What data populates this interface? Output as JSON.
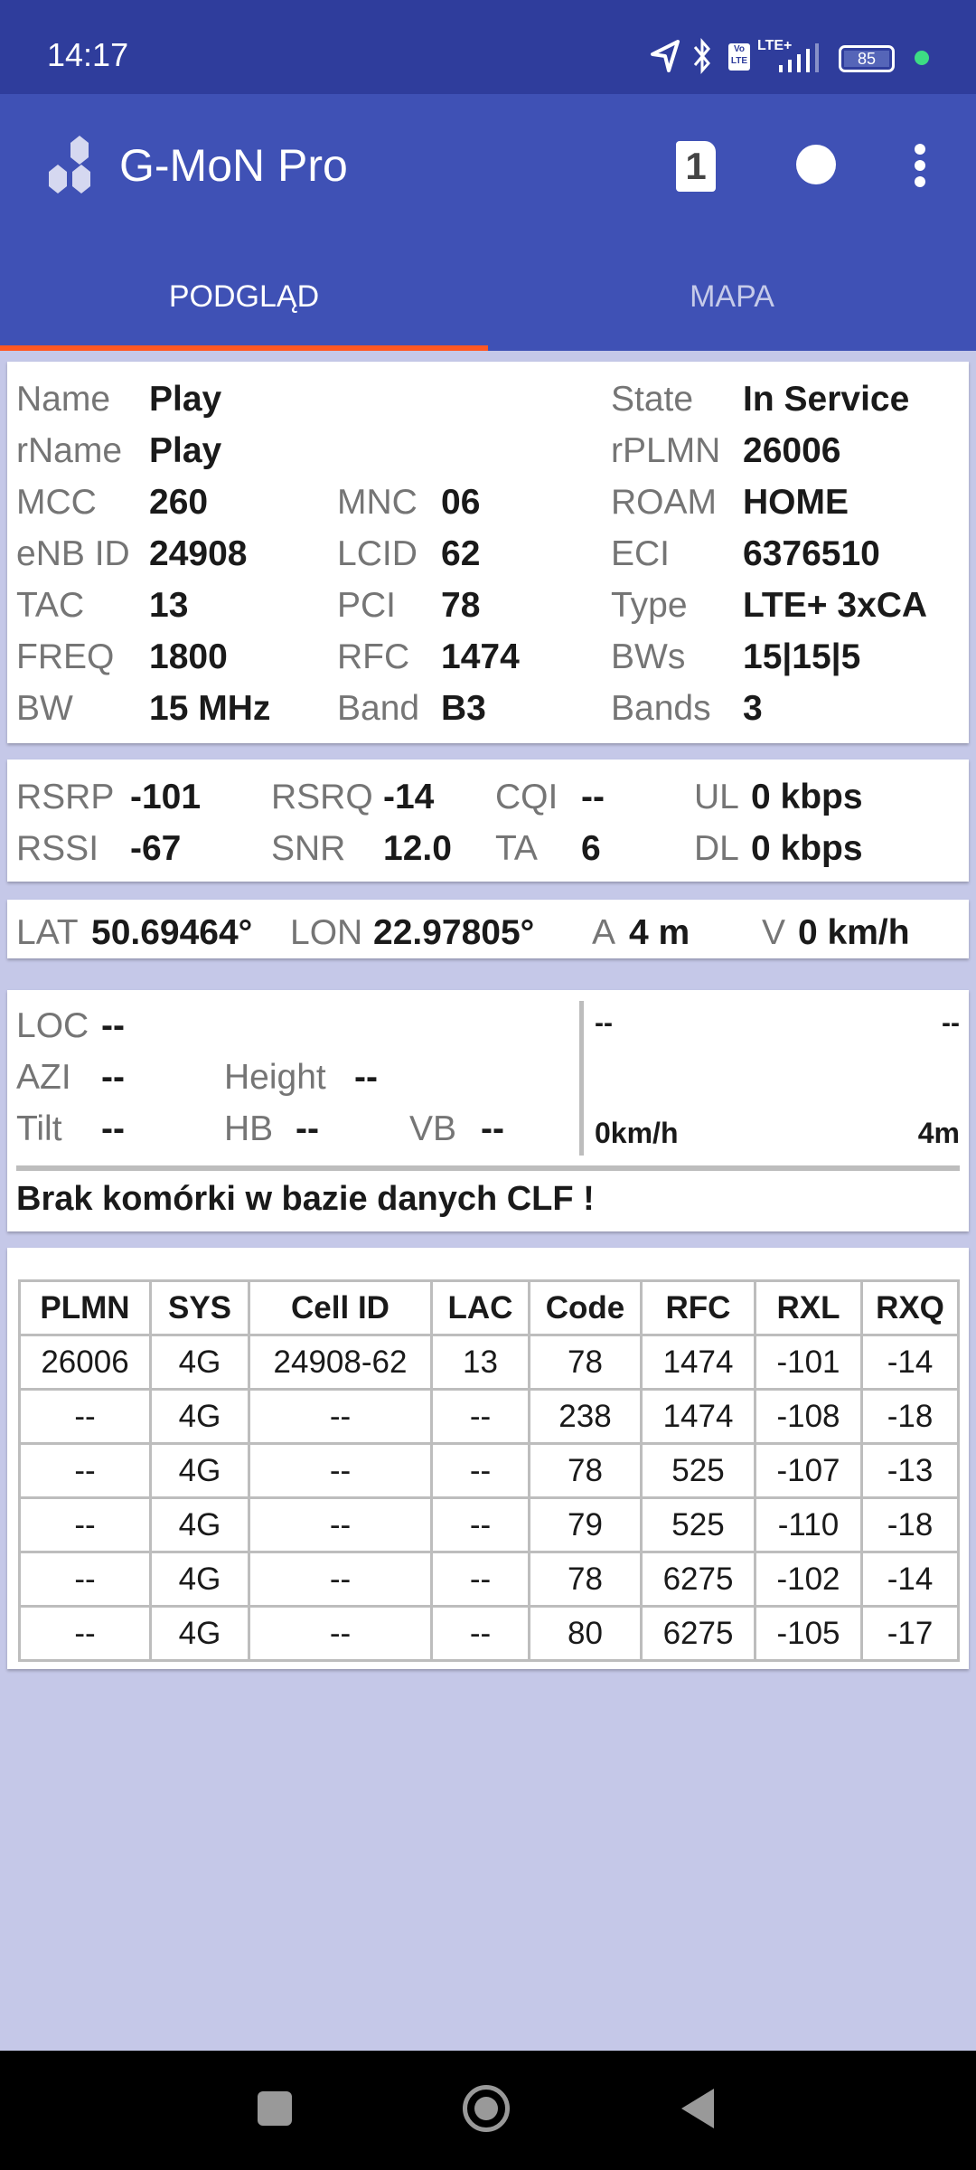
{
  "status_bar": {
    "time": "14:17",
    "battery": "85",
    "network": "LTE+",
    "volte": "Vo LTE"
  },
  "app_bar": {
    "title": "G-MoN Pro",
    "sim_badge": "1"
  },
  "tabs": [
    {
      "label": "PODGLĄD",
      "active": true
    },
    {
      "label": "MAPA",
      "active": false
    }
  ],
  "colors": {
    "status_bar": "#2f3d9c",
    "app_bar": "#3f51b5",
    "tab_indicator": "#ff5722",
    "background": "#c5c8e8"
  },
  "cell_info": {
    "name": {
      "label": "Name",
      "value": "Play"
    },
    "rname": {
      "label": "rName",
      "value": "Play"
    },
    "state": {
      "label": "State",
      "value": "In Service"
    },
    "rplmn": {
      "label": "rPLMN",
      "value": "26006"
    },
    "mcc": {
      "label": "MCC",
      "value": "260"
    },
    "mnc": {
      "label": "MNC",
      "value": "06"
    },
    "roam": {
      "label": "ROAM",
      "value": "HOME"
    },
    "enb": {
      "label": "eNB ID",
      "value": "24908"
    },
    "lcid": {
      "label": "LCID",
      "value": "62"
    },
    "eci": {
      "label": "ECI",
      "value": "6376510"
    },
    "tac": {
      "label": "TAC",
      "value": "13"
    },
    "pci": {
      "label": "PCI",
      "value": "78"
    },
    "type": {
      "label": "Type",
      "value": "LTE+ 3xCA"
    },
    "freq": {
      "label": "FREQ",
      "value": "1800"
    },
    "rfc": {
      "label": "RFC",
      "value": "1474"
    },
    "bws": {
      "label": "BWs",
      "value": "15|15|5"
    },
    "bw": {
      "label": "BW",
      "value": "15 MHz"
    },
    "band": {
      "label": "Band",
      "value": "B3"
    },
    "bands": {
      "label": "Bands",
      "value": "3"
    }
  },
  "signal": {
    "rsrp": {
      "label": "RSRP",
      "value": "-101"
    },
    "rsrq": {
      "label": "RSRQ",
      "value": "-14"
    },
    "cqi": {
      "label": "CQI",
      "value": "--"
    },
    "ul": {
      "label": "UL",
      "value": "0 kbps"
    },
    "rssi": {
      "label": "RSSI",
      "value": "-67"
    },
    "snr": {
      "label": "SNR",
      "value": "12.0"
    },
    "ta": {
      "label": "TA",
      "value": "6"
    },
    "dl": {
      "label": "DL",
      "value": "0 kbps"
    }
  },
  "location": {
    "lat": {
      "label": "LAT",
      "value": "50.69464°"
    },
    "lon": {
      "label": "LON",
      "value": "22.97805°"
    },
    "acc": {
      "label": "A",
      "value": "4 m"
    },
    "speed": {
      "label": "V",
      "value": "0 km/h"
    }
  },
  "clf": {
    "loc": {
      "label": "LOC",
      "value": "--"
    },
    "azi": {
      "label": "AZI",
      "value": "--"
    },
    "height": {
      "label": "Height",
      "value": "--"
    },
    "tilt": {
      "label": "Tilt",
      "value": "--"
    },
    "hb": {
      "label": "HB",
      "value": "--"
    },
    "vb": {
      "label": "VB",
      "value": "--"
    },
    "right_top_left": "--",
    "right_top_right": "--",
    "speed": "0km/h",
    "distance": "4m",
    "message": "Brak komórki w bazie danych CLF !"
  },
  "neighbors": {
    "headers": [
      "PLMN",
      "SYS",
      "Cell ID",
      "LAC",
      "Code",
      "RFC",
      "RXL",
      "RXQ"
    ],
    "rows": [
      [
        "26006",
        "4G",
        "24908-62",
        "13",
        "78",
        "1474",
        "-101",
        "-14"
      ],
      [
        "--",
        "4G",
        "--",
        "--",
        "238",
        "1474",
        "-108",
        "-18"
      ],
      [
        "--",
        "4G",
        "--",
        "--",
        "78",
        "525",
        "-107",
        "-13"
      ],
      [
        "--",
        "4G",
        "--",
        "--",
        "79",
        "525",
        "-110",
        "-18"
      ],
      [
        "--",
        "4G",
        "--",
        "--",
        "78",
        "6275",
        "-102",
        "-14"
      ],
      [
        "--",
        "4G",
        "--",
        "--",
        "80",
        "6275",
        "-105",
        "-17"
      ]
    ]
  }
}
